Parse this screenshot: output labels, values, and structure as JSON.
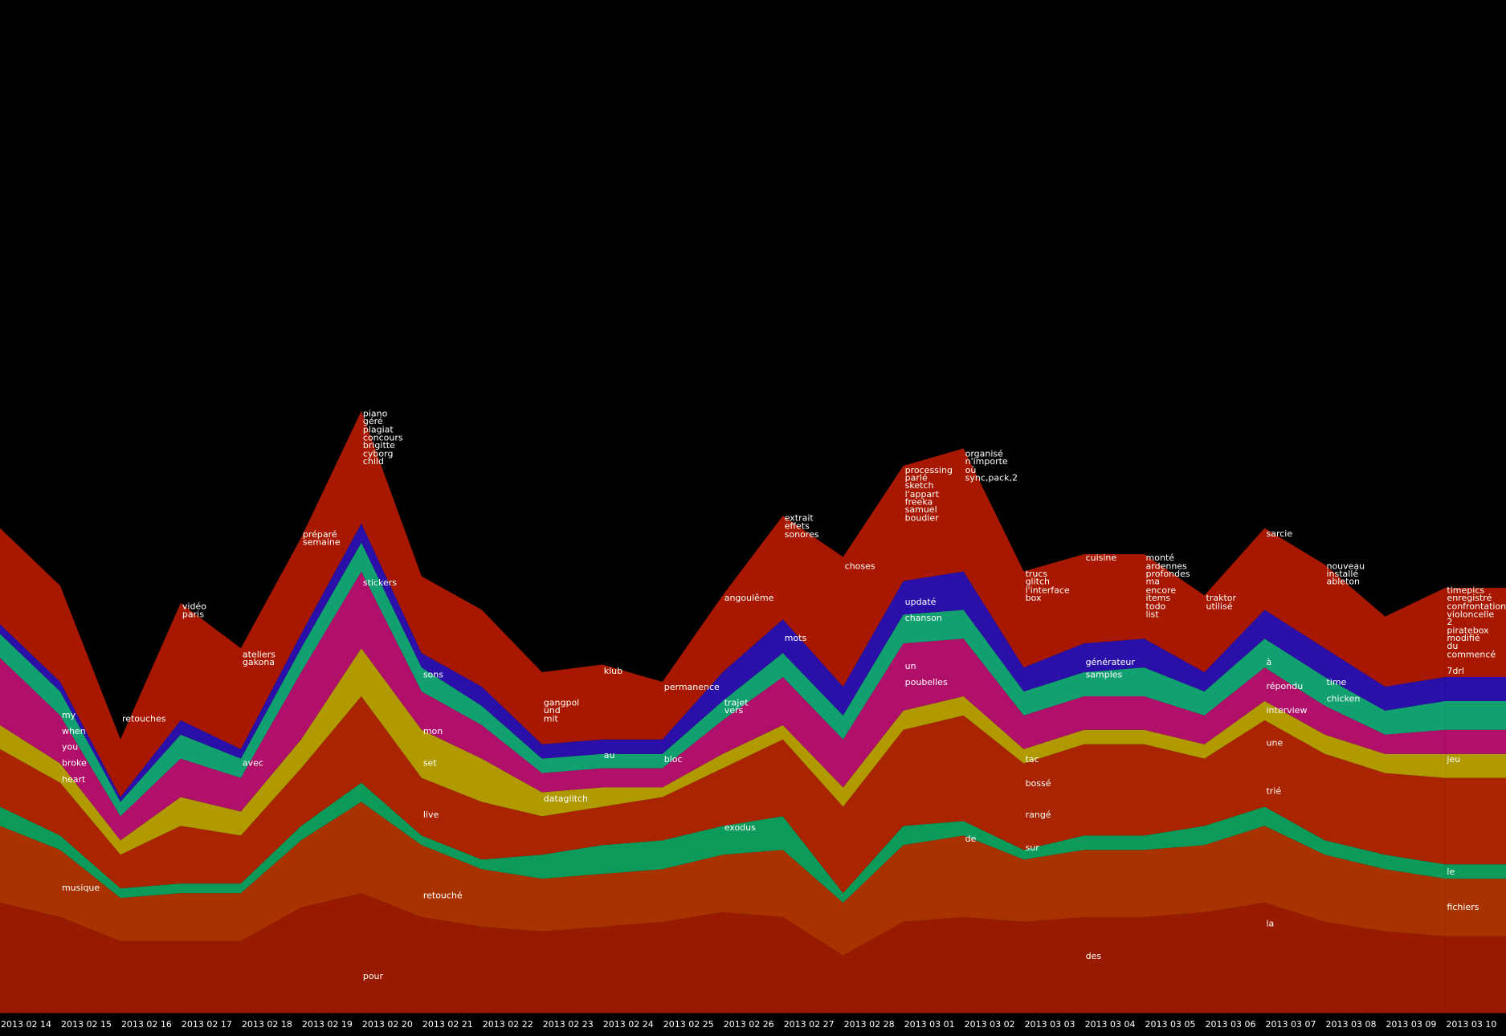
{
  "chart_data": {
    "type": "streamgraph",
    "categories": [
      "2013 02 14",
      "2013 02 15",
      "2013 02 16",
      "2013 02 17",
      "2013 02 18",
      "2013 02 19",
      "2013 02 20",
      "2013 02 21",
      "2013 02 22",
      "2013 02 23",
      "2013 02 24",
      "2013 02 25",
      "2013 02 26",
      "2013 02 27",
      "2013 02 28",
      "2013 03 01",
      "2013 03 02",
      "2013 03 03",
      "2013 03 04",
      "2013 03 05",
      "2013 03 06",
      "2013 03 07",
      "2013 03 08",
      "2013 03 09",
      "2013 03 10"
    ],
    "ylim": [
      0,
      1055
    ],
    "series": [
      {
        "color": "#981a00",
        "values": [
          115,
          100,
          75,
          75,
          75,
          110,
          125,
          100,
          90,
          85,
          90,
          95,
          105,
          100,
          60,
          95,
          100,
          95,
          100,
          100,
          105,
          115,
          95,
          85,
          80
        ]
      },
      {
        "color": "#a83200",
        "values": [
          80,
          70,
          45,
          50,
          50,
          70,
          95,
          75,
          60,
          55,
          55,
          55,
          60,
          70,
          55,
          80,
          85,
          65,
          70,
          70,
          70,
          80,
          70,
          65,
          60
        ]
      },
      {
        "color": "#0c9a5a",
        "values": [
          20,
          15,
          10,
          10,
          10,
          15,
          20,
          10,
          10,
          25,
          30,
          30,
          30,
          35,
          10,
          20,
          15,
          10,
          15,
          15,
          20,
          20,
          15,
          15,
          15
        ]
      },
      {
        "color": "#a92400",
        "values": [
          60,
          55,
          35,
          60,
          50,
          60,
          90,
          60,
          60,
          40,
          40,
          45,
          60,
          80,
          90,
          100,
          110,
          90,
          95,
          95,
          70,
          90,
          90,
          85,
          90
        ]
      },
      {
        "color": "#b09a00",
        "values": [
          25,
          20,
          15,
          30,
          25,
          30,
          50,
          50,
          45,
          25,
          20,
          10,
          15,
          15,
          20,
          20,
          20,
          15,
          15,
          15,
          15,
          20,
          20,
          20,
          25
        ]
      },
      {
        "color": "#b0106a",
        "values": [
          70,
          50,
          25,
          40,
          35,
          70,
          80,
          40,
          35,
          20,
          20,
          20,
          35,
          50,
          50,
          70,
          60,
          35,
          35,
          35,
          30,
          35,
          30,
          20,
          25
        ]
      },
      {
        "color": "#12a070",
        "values": [
          25,
          25,
          15,
          25,
          20,
          25,
          30,
          25,
          20,
          15,
          15,
          15,
          20,
          25,
          25,
          30,
          30,
          25,
          25,
          30,
          25,
          30,
          30,
          25,
          30
        ]
      },
      {
        "color": "#2a10a8",
        "values": [
          10,
          10,
          5,
          15,
          10,
          15,
          20,
          15,
          20,
          15,
          15,
          15,
          30,
          35,
          30,
          35,
          40,
          25,
          30,
          30,
          20,
          30,
          30,
          25,
          25
        ]
      },
      {
        "color": "#a81800",
        "values": [
          100,
          100,
          60,
          122,
          105,
          100,
          117,
          80,
          80,
          75,
          78,
          60,
          80,
          108,
          135,
          120,
          128,
          100,
          93,
          88,
          80,
          85,
          87,
          73,
          93
        ]
      }
    ],
    "labels": [
      {
        "text": "my",
        "date": "2013 02 15",
        "y": 310
      },
      {
        "text": "when",
        "date": "2013 02 15",
        "y": 293
      },
      {
        "text": "you",
        "date": "2013 02 15",
        "y": 277
      },
      {
        "text": "broke",
        "date": "2013 02 15",
        "y": 260
      },
      {
        "text": "heart",
        "date": "2013 02 15",
        "y": 243
      },
      {
        "text": "musique",
        "date": "2013 02 15",
        "y": 130
      },
      {
        "text": "retouches",
        "date": "2013 02 16",
        "y": 306
      },
      {
        "text": "vidéo",
        "date": "2013 02 17",
        "y": 423
      },
      {
        "text": "paris",
        "date": "2013 02 17",
        "y": 415
      },
      {
        "text": "ateliers",
        "date": "2013 02 18",
        "y": 373
      },
      {
        "text": "gakona",
        "date": "2013 02 18",
        "y": 365
      },
      {
        "text": "avec",
        "date": "2013 02 18",
        "y": 260
      },
      {
        "text": "préparé",
        "date": "2013 02 19",
        "y": 498
      },
      {
        "text": "semaine",
        "date": "2013 02 19",
        "y": 490
      },
      {
        "text": "piano",
        "date": "2013 02 20",
        "y": 624
      },
      {
        "text": "géré",
        "date": "2013 02 20",
        "y": 616
      },
      {
        "text": "plagiat",
        "date": "2013 02 20",
        "y": 607
      },
      {
        "text": "concours",
        "date": "2013 02 20",
        "y": 599
      },
      {
        "text": "brigitte",
        "date": "2013 02 20",
        "y": 591
      },
      {
        "text": "cyborg",
        "date": "2013 02 20",
        "y": 582
      },
      {
        "text": "child",
        "date": "2013 02 20",
        "y": 574
      },
      {
        "text": "stickers",
        "date": "2013 02 20",
        "y": 448
      },
      {
        "text": "pour",
        "date": "2013 02 20",
        "y": 38
      },
      {
        "text": "sons",
        "date": "2013 02 21",
        "y": 352
      },
      {
        "text": "mon",
        "date": "2013 02 21",
        "y": 293
      },
      {
        "text": "set",
        "date": "2013 02 21",
        "y": 260
      },
      {
        "text": "live",
        "date": "2013 02 21",
        "y": 206
      },
      {
        "text": "retouché",
        "date": "2013 02 21",
        "y": 122
      },
      {
        "text": "gangpol",
        "date": "2013 02 23",
        "y": 323
      },
      {
        "text": "und",
        "date": "2013 02 23",
        "y": 315
      },
      {
        "text": "mit",
        "date": "2013 02 23",
        "y": 306
      },
      {
        "text": "dataglitch",
        "date": "2013 02 23",
        "y": 223
      },
      {
        "text": "klub",
        "date": "2013 02 24",
        "y": 356
      },
      {
        "text": "au",
        "date": "2013 02 24",
        "y": 268
      },
      {
        "text": "permanence",
        "date": "2013 02 25",
        "y": 339
      },
      {
        "text": "bloc",
        "date": "2013 02 25",
        "y": 264
      },
      {
        "text": "angoulême",
        "date": "2013 02 26",
        "y": 432
      },
      {
        "text": "trajet",
        "date": "2013 02 26",
        "y": 323
      },
      {
        "text": "vers",
        "date": "2013 02 26",
        "y": 315
      },
      {
        "text": "exodus",
        "date": "2013 02 26",
        "y": 193
      },
      {
        "text": "extrait",
        "date": "2013 02 27",
        "y": 515
      },
      {
        "text": "effets",
        "date": "2013 02 27",
        "y": 507
      },
      {
        "text": "sonores",
        "date": "2013 02 27",
        "y": 498
      },
      {
        "text": "mots",
        "date": "2013 02 27",
        "y": 390
      },
      {
        "text": "choses",
        "date": "2013 02 28",
        "y": 465
      },
      {
        "text": "processing",
        "date": "2013 03 01",
        "y": 565
      },
      {
        "text": "parlé",
        "date": "2013 03 01",
        "y": 557
      },
      {
        "text": "sketch",
        "date": "2013 03 01",
        "y": 549
      },
      {
        "text": "l'appart",
        "date": "2013 03 01",
        "y": 540
      },
      {
        "text": "freeka",
        "date": "2013 03 01",
        "y": 532
      },
      {
        "text": "samuel",
        "date": "2013 03 01",
        "y": 524
      },
      {
        "text": "boudier",
        "date": "2013 03 01",
        "y": 515
      },
      {
        "text": "updaté",
        "date": "2013 03 01",
        "y": 428
      },
      {
        "text": "chanson",
        "date": "2013 03 01",
        "y": 411
      },
      {
        "text": "un",
        "date": "2013 03 01",
        "y": 361
      },
      {
        "text": "poubelles",
        "date": "2013 03 01",
        "y": 344
      },
      {
        "text": "organisé",
        "date": "2013 03 02",
        "y": 582
      },
      {
        "text": "n'importe",
        "date": "2013 03 02",
        "y": 574
      },
      {
        "text": "où",
        "date": "2013 03 02",
        "y": 565
      },
      {
        "text": "sync,pack,2",
        "date": "2013 03 02",
        "y": 557
      },
      {
        "text": "de",
        "date": "2013 03 02",
        "y": 181
      },
      {
        "text": "trucs",
        "date": "2013 03 03",
        "y": 457
      },
      {
        "text": "glitch",
        "date": "2013 03 03",
        "y": 449
      },
      {
        "text": "l'interface",
        "date": "2013 03 03",
        "y": 440
      },
      {
        "text": "box",
        "date": "2013 03 03",
        "y": 432
      },
      {
        "text": "tac",
        "date": "2013 03 03",
        "y": 264
      },
      {
        "text": "bossé",
        "date": "2013 03 03",
        "y": 239
      },
      {
        "text": "rangé",
        "date": "2013 03 03",
        "y": 206
      },
      {
        "text": "sur",
        "date": "2013 03 03",
        "y": 172
      },
      {
        "text": "cuisine",
        "date": "2013 03 04",
        "y": 474
      },
      {
        "text": "générateur",
        "date": "2013 03 04",
        "y": 365
      },
      {
        "text": "samples",
        "date": "2013 03 04",
        "y": 352
      },
      {
        "text": "des",
        "date": "2013 03 04",
        "y": 59
      },
      {
        "text": "monté",
        "date": "2013 03 05",
        "y": 474
      },
      {
        "text": "ardennes",
        "date": "2013 03 05",
        "y": 465
      },
      {
        "text": "profondes",
        "date": "2013 03 05",
        "y": 457
      },
      {
        "text": "ma",
        "date": "2013 03 05",
        "y": 449
      },
      {
        "text": "encore",
        "date": "2013 03 05",
        "y": 440
      },
      {
        "text": "items",
        "date": "2013 03 05",
        "y": 432
      },
      {
        "text": "todo",
        "date": "2013 03 05",
        "y": 423
      },
      {
        "text": "list",
        "date": "2013 03 05",
        "y": 415
      },
      {
        "text": "traktor",
        "date": "2013 03 06",
        "y": 432
      },
      {
        "text": "utilisé",
        "date": "2013 03 06",
        "y": 423
      },
      {
        "text": "sarcie",
        "date": "2013 03 07",
        "y": 499
      },
      {
        "text": "à",
        "date": "2013 03 07",
        "y": 365
      },
      {
        "text": "répondu",
        "date": "2013 03 07",
        "y": 340
      },
      {
        "text": "interview",
        "date": "2013 03 07",
        "y": 315
      },
      {
        "text": "une",
        "date": "2013 03 07",
        "y": 281
      },
      {
        "text": "trié",
        "date": "2013 03 07",
        "y": 231
      },
      {
        "text": "la",
        "date": "2013 03 07",
        "y": 93
      },
      {
        "text": "nouveau",
        "date": "2013 03 08",
        "y": 465
      },
      {
        "text": "installé",
        "date": "2013 03 08",
        "y": 457
      },
      {
        "text": "ableton",
        "date": "2013 03 08",
        "y": 449
      },
      {
        "text": "time",
        "date": "2013 03 08",
        "y": 344
      },
      {
        "text": "chicken",
        "date": "2013 03 08",
        "y": 327
      },
      {
        "text": "timepics",
        "date": "2013 03 10",
        "y": 440
      },
      {
        "text": "enregistré",
        "date": "2013 03 10",
        "y": 432
      },
      {
        "text": "confrontation",
        "date": "2013 03 10",
        "y": 423
      },
      {
        "text": "violoncelle",
        "date": "2013 03 10",
        "y": 415
      },
      {
        "text": "2",
        "date": "2013 03 10",
        "y": 407
      },
      {
        "text": "piratebox",
        "date": "2013 03 10",
        "y": 398
      },
      {
        "text": "modifié",
        "date": "2013 03 10",
        "y": 390
      },
      {
        "text": "du",
        "date": "2013 03 10",
        "y": 382
      },
      {
        "text": "commencé",
        "date": "2013 03 10",
        "y": 373
      },
      {
        "text": "7drl",
        "date": "2013 03 10",
        "y": 356
      },
      {
        "text": "jeu",
        "date": "2013 03 10",
        "y": 264
      },
      {
        "text": "le",
        "date": "2013 03 10",
        "y": 147
      },
      {
        "text": "fichiers",
        "date": "2013 03 10",
        "y": 110
      }
    ]
  }
}
